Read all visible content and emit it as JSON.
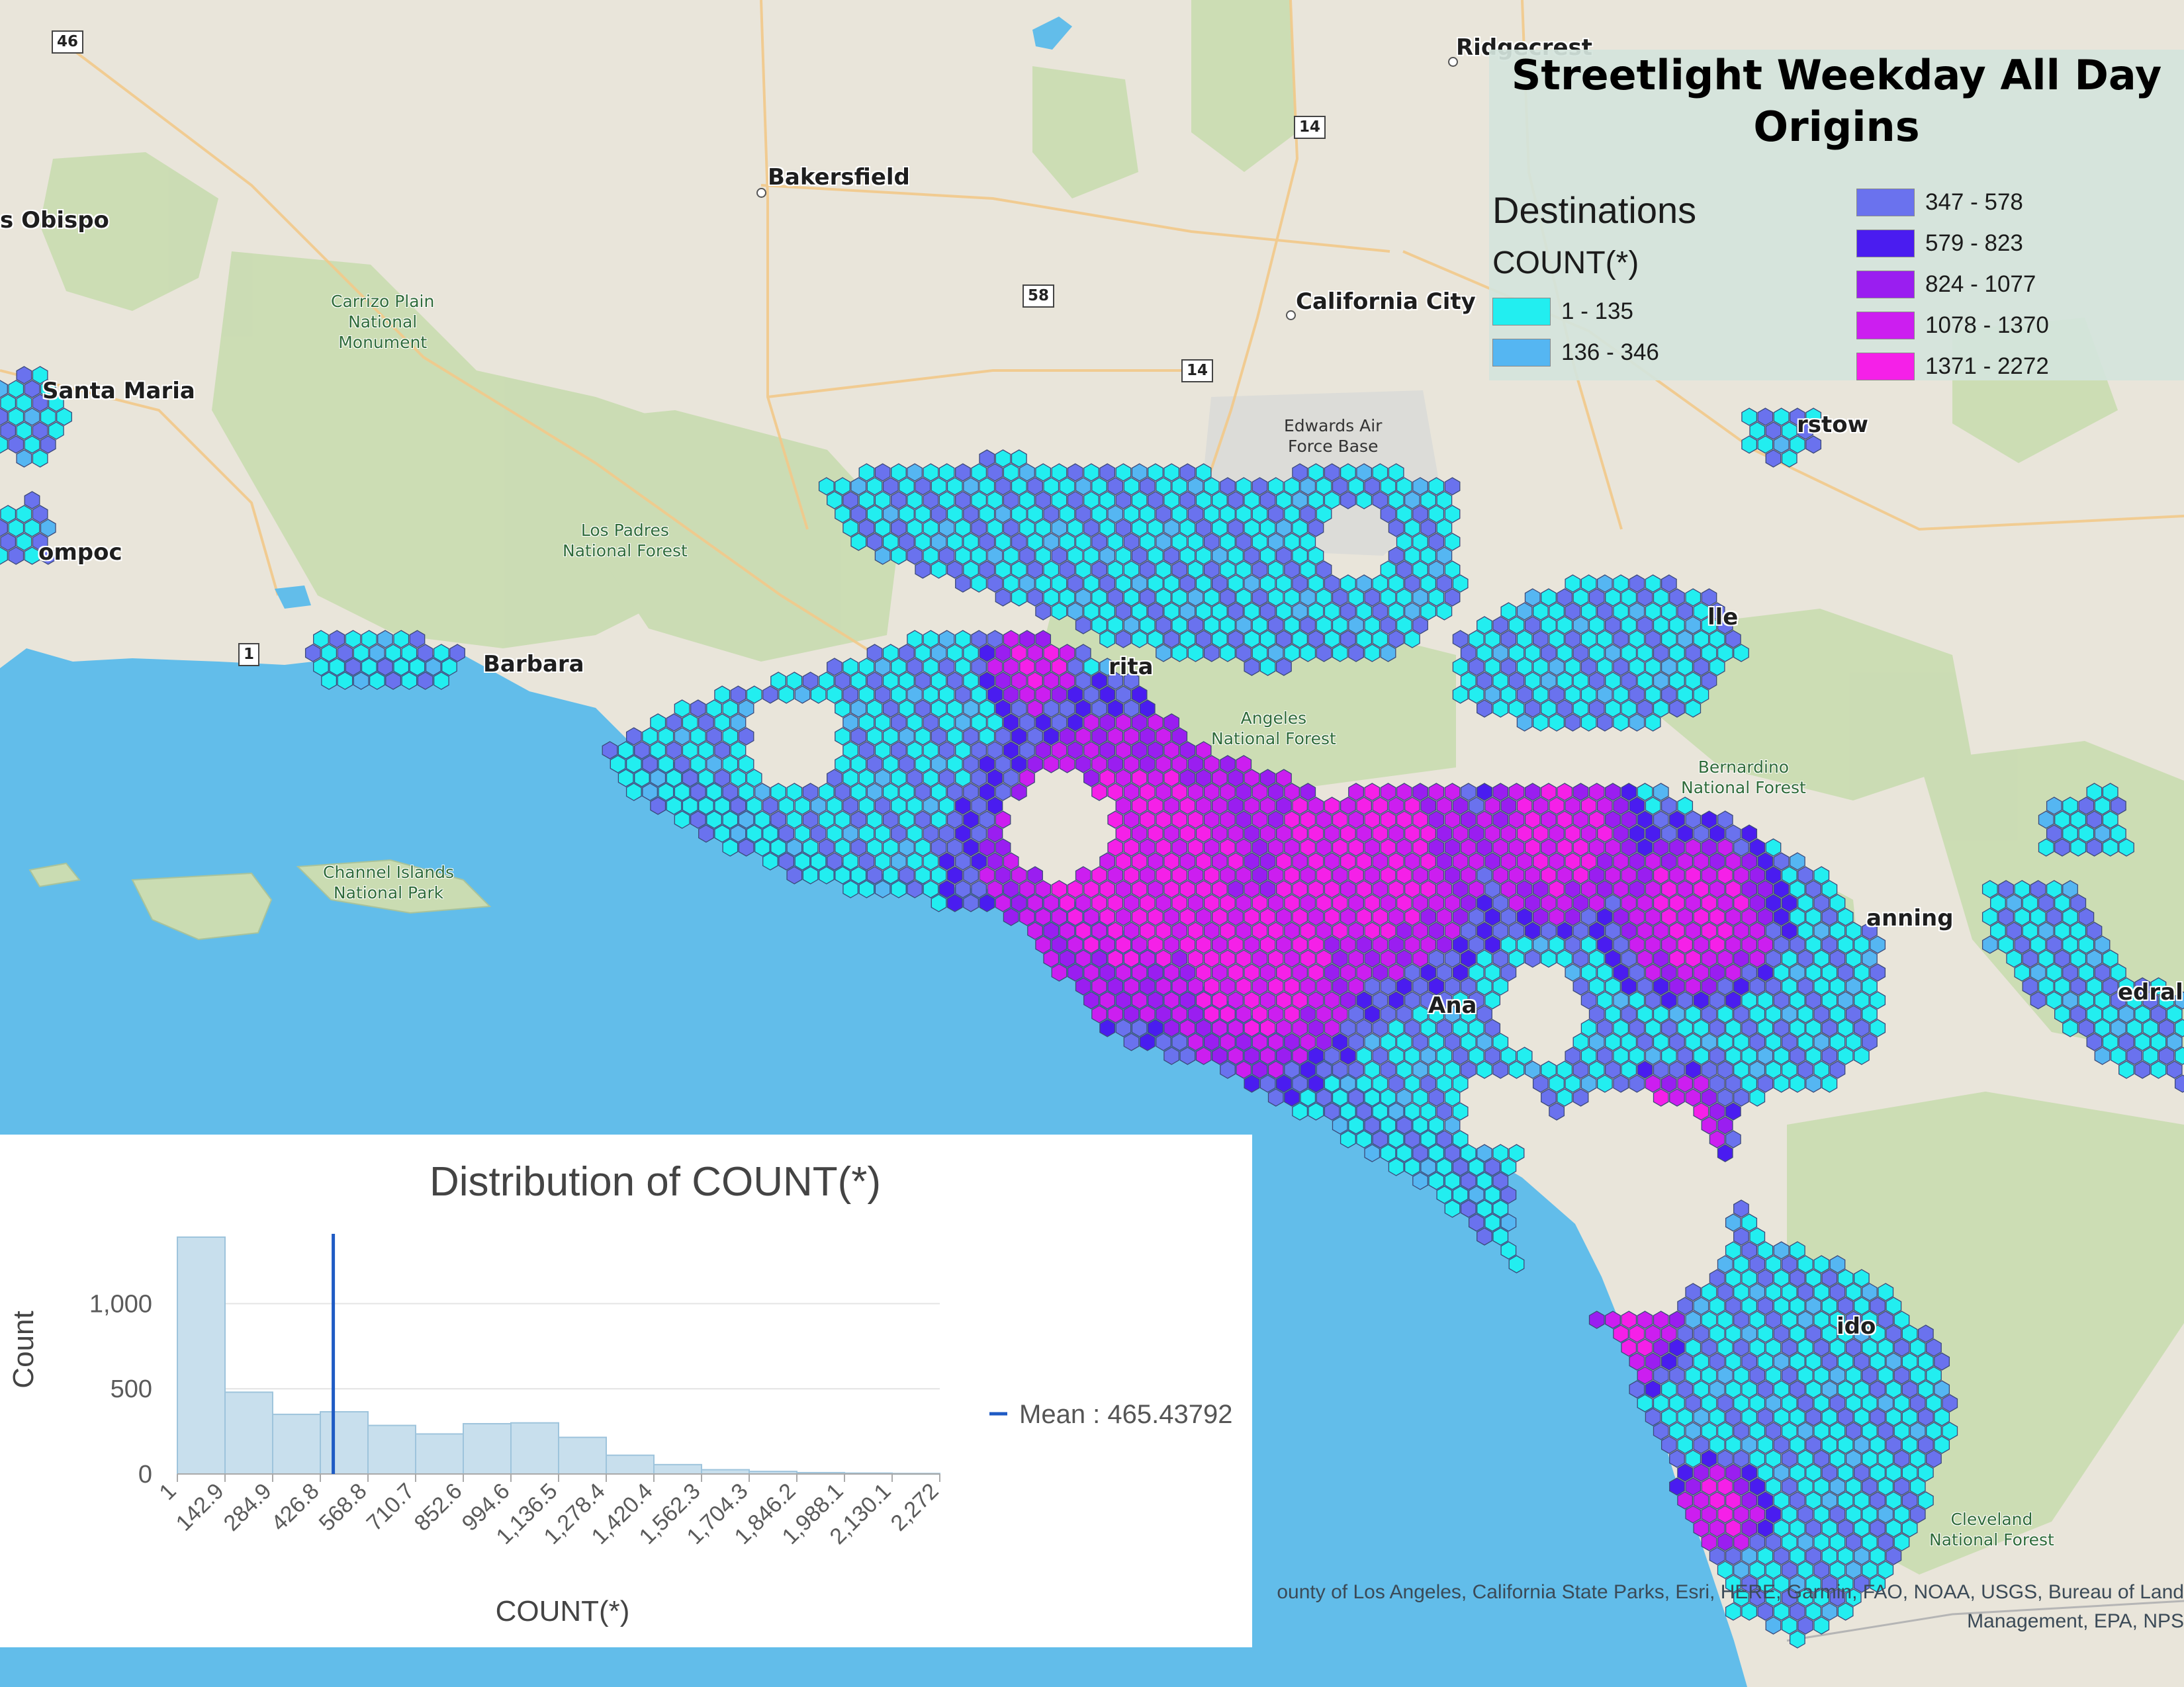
{
  "title": "Streetlight Weekday All Day\nOrigins",
  "legend": {
    "layer_name": "Destinations",
    "field_name": "COUNT(*)",
    "classes": [
      {
        "label": "1 - 135",
        "color": "#22eef0"
      },
      {
        "label": "136 - 346",
        "color": "#55b6f2"
      },
      {
        "label": "347 - 578",
        "color": "#6a72ee"
      },
      {
        "label": "579 - 823",
        "color": "#4a1cf0"
      },
      {
        "label": "824 - 1077",
        "color": "#9a1ef0"
      },
      {
        "label": "1078 - 1370",
        "color": "#cc1ef0"
      },
      {
        "label": "1371 - 2272",
        "color": "#f520e8"
      }
    ]
  },
  "map": {
    "places": [
      {
        "id": "ridgecrest",
        "label": "Ridgecrest"
      },
      {
        "id": "bakersfield",
        "label": "Bakersfield"
      },
      {
        "id": "obispo",
        "label": "s Obispo"
      },
      {
        "id": "california-city",
        "label": "California City"
      },
      {
        "id": "santa-maria",
        "label": "Santa Maria"
      },
      {
        "id": "lompoc",
        "label": "ompoc"
      },
      {
        "id": "barbara",
        "label": "Barbara"
      },
      {
        "id": "barstow",
        "label": "rstow"
      },
      {
        "id": "victorville",
        "label": "lle"
      },
      {
        "id": "clarita",
        "label": "rita"
      },
      {
        "id": "banning",
        "label": "anning"
      },
      {
        "id": "santa-ana",
        "label": "Ana"
      },
      {
        "id": "oceanside",
        "label": "ido"
      },
      {
        "id": "cathedral",
        "label": "edral"
      }
    ],
    "parks": [
      {
        "id": "carrizo",
        "label": "Carrizo Plain\nNational\nMonument"
      },
      {
        "id": "los-padres",
        "label": "Los Padres\nNational Forest"
      },
      {
        "id": "angeles",
        "label": "Angeles\nNational Forest"
      },
      {
        "id": "channel-islands",
        "label": "Channel Islands\nNational Park"
      },
      {
        "id": "san-bernardino",
        "label": "Bernardino\nNational Forest"
      },
      {
        "id": "cleveland",
        "label": "Cleveland\nNational Forest"
      }
    ],
    "bases": [
      {
        "id": "edwards",
        "label": "Edwards Air\nForce Base"
      }
    ],
    "highways": [
      {
        "id": "hwy-46",
        "label": "46"
      },
      {
        "id": "hwy-14-north",
        "label": "14"
      },
      {
        "id": "hwy-58",
        "label": "58"
      },
      {
        "id": "hwy-14-south",
        "label": "14"
      },
      {
        "id": "hwy-1",
        "label": "1"
      }
    ],
    "attribution": "ounty of Los Angeles, California State Parks, Esri, HERE, Garmin, FAO, NOAA, USGS, Bureau of Land Management, EPA, NPS"
  },
  "chart_data": {
    "type": "bar",
    "title": "Distribution of COUNT(*)",
    "xlabel": "COUNT(*)",
    "ylabel": "Count",
    "bin_edges": [
      1,
      142.9,
      284.9,
      426.8,
      568.8,
      710.7,
      852.6,
      994.6,
      1136.5,
      1278.4,
      1420.4,
      1562.3,
      1704.3,
      1846.2,
      1988.1,
      2130.1,
      2272
    ],
    "tick_labels": [
      "1",
      "142.9",
      "284.9",
      "426.8",
      "568.8",
      "710.7",
      "852.6",
      "994.6",
      "1,136.5",
      "1,278.4",
      "1,420.4",
      "1,562.3",
      "1,704.3",
      "1,846.2",
      "1,988.1",
      "2,130.1",
      "2,272"
    ],
    "values": [
      1390,
      480,
      350,
      365,
      285,
      235,
      295,
      300,
      215,
      110,
      55,
      25,
      15,
      8,
      5,
      3
    ],
    "ylim": [
      0,
      1390
    ],
    "yticks": [
      0,
      500,
      1000
    ],
    "ytick_labels": [
      "0",
      "500",
      "1,000"
    ],
    "mean": 465.43792,
    "mean_label": "Mean : 465.43792",
    "colors": {
      "bar": "#c8dfed",
      "bar_edge": "#9ec4dc",
      "mean": "#1f5bc4",
      "grid": "#e4e4e4"
    }
  }
}
